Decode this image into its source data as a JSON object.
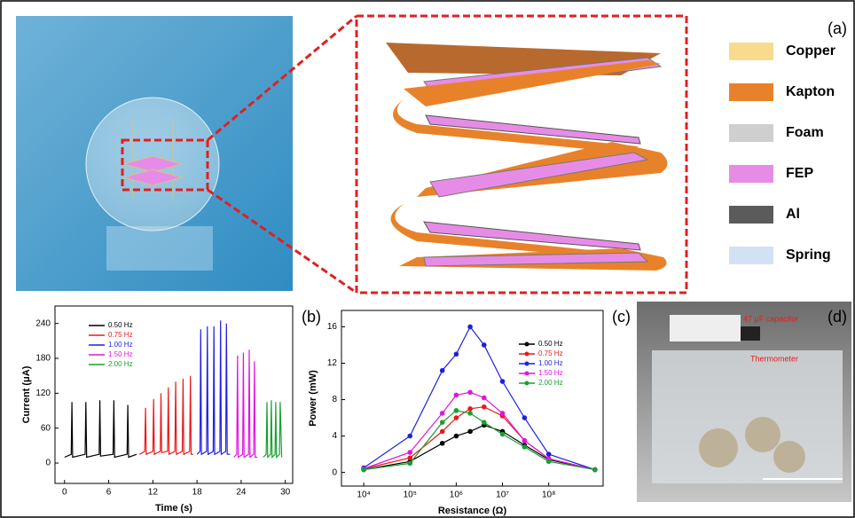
{
  "panel_labels": {
    "a": "(a)",
    "b": "(b)",
    "c": "(c)",
    "d": "(d)"
  },
  "materials": [
    {
      "label": "Copper",
      "color": "#f7db8f"
    },
    {
      "label": "Kapton",
      "color": "#e8822a"
    },
    {
      "label": "Foam",
      "color": "#cfcfcf"
    },
    {
      "label": "FEP",
      "color": "#e68ce6"
    },
    {
      "label": "Al",
      "color": "#5b5b5b"
    },
    {
      "label": "Spring",
      "color": "#d3e2f2"
    }
  ],
  "photo_annotations": {
    "capacitor": "47 μF capacitor",
    "thermometer": "Thermometer"
  },
  "chart_data": [
    {
      "type": "line",
      "xlabel": "Time (s)",
      "ylabel": "Current (μA)",
      "xlim": [
        -1.3,
        31
      ],
      "ylim": [
        -35,
        270
      ],
      "xticks": [
        0,
        6,
        12,
        18,
        24,
        30
      ],
      "yticks": [
        0,
        60,
        120,
        180,
        240
      ],
      "legend": "upper left",
      "series": [
        {
          "name": "0.50 Hz",
          "color": "#000000",
          "x": [
            0,
            0.9,
            1,
            1.1,
            2.8,
            2.9,
            3,
            4.7,
            4.8,
            4.9,
            6.6,
            6.7,
            6.8,
            8.5,
            8.6,
            8.7,
            9.8
          ],
          "values": [
            10,
            15,
            105,
            10,
            15,
            105,
            10,
            15,
            108,
            12,
            15,
            108,
            10,
            15,
            100,
            10,
            15
          ]
        },
        {
          "name": "0.75 Hz",
          "color": "#e8191b",
          "x": [
            10.2,
            10.9,
            11,
            11.1,
            12,
            12.1,
            12.2,
            13,
            13.1,
            13.2,
            14,
            14.1,
            14.2,
            15,
            15.1,
            15.2,
            16,
            16.1,
            16.2,
            17,
            17.1,
            17.2,
            17.5
          ],
          "values": [
            15,
            20,
            95,
            15,
            20,
            110,
            15,
            20,
            120,
            18,
            20,
            130,
            15,
            20,
            140,
            15,
            20,
            145,
            15,
            20,
            150,
            15,
            15
          ]
        },
        {
          "name": "1.00 Hz",
          "color": "#1f1fe0",
          "x": [
            18,
            18.4,
            18.5,
            18.6,
            19.3,
            19.4,
            19.5,
            20.2,
            20.3,
            20.4,
            21.1,
            21.2,
            21.3,
            21.9,
            22,
            22.1,
            22.5
          ],
          "values": [
            15,
            20,
            230,
            15,
            20,
            235,
            15,
            20,
            235,
            15,
            20,
            245,
            15,
            20,
            240,
            15,
            15
          ]
        },
        {
          "name": "1.50 Hz",
          "color": "#e014e0",
          "x": [
            23,
            23.4,
            23.5,
            23.6,
            24.2,
            24.3,
            24.4,
            25,
            25.1,
            25.2,
            25.7,
            25.8,
            25.9,
            26.2
          ],
          "values": [
            10,
            15,
            185,
            10,
            15,
            190,
            10,
            15,
            195,
            10,
            15,
            175,
            10,
            10
          ]
        },
        {
          "name": "2.00 Hz",
          "color": "#18a030",
          "x": [
            27,
            27.4,
            27.5,
            27.6,
            28,
            28.1,
            28.2,
            28.6,
            28.7,
            28.8,
            29.2,
            29.3,
            29.5
          ],
          "values": [
            10,
            15,
            105,
            10,
            15,
            108,
            10,
            15,
            105,
            10,
            15,
            105,
            10
          ]
        }
      ]
    },
    {
      "type": "line",
      "xlabel": "Resistance (Ω)",
      "ylabel": "Power (mW)",
      "xscale": "log",
      "markers": true,
      "xlim": [
        3300,
        1500000000
      ],
      "ylim": [
        -1.5,
        17.8
      ],
      "xticks": [
        {
          "value": 10000,
          "label": "10⁴"
        },
        {
          "value": 100000,
          "label": "10⁵"
        },
        {
          "value": 1000000,
          "label": "10⁶"
        },
        {
          "value": 10000000,
          "label": "10⁷"
        },
        {
          "value": 100000000,
          "label": "10⁸"
        }
      ],
      "yticks": [
        0,
        4,
        8,
        12,
        16
      ],
      "legend": "center right",
      "x": [
        10000,
        100000,
        500000,
        1000000,
        2000000,
        4000000,
        10000000,
        30000000,
        100000000,
        1000000000
      ],
      "series": [
        {
          "name": "0.50 Hz",
          "color": "#000000",
          "values": [
            0.3,
            1.2,
            3.2,
            4,
            4.5,
            5.2,
            4.5,
            3,
            1.4,
            0.3
          ]
        },
        {
          "name": "0.75 Hz",
          "color": "#e8191b",
          "values": [
            0.4,
            1.6,
            4.5,
            6,
            7,
            7.2,
            6.2,
            3.5,
            1.5,
            0.3
          ]
        },
        {
          "name": "1.00 Hz",
          "color": "#1f1fe0",
          "values": [
            0.5,
            4,
            11.2,
            13,
            16,
            14,
            10,
            6,
            2,
            0.3
          ]
        },
        {
          "name": "1.50 Hz",
          "color": "#e014e0",
          "values": [
            0.4,
            2.2,
            6.5,
            8.5,
            8.8,
            8.2,
            6.5,
            3.5,
            1.5,
            0.3
          ]
        },
        {
          "name": "2.00 Hz",
          "color": "#18a030",
          "values": [
            0.3,
            1,
            5.5,
            6.8,
            6.5,
            5.5,
            4.2,
            2.8,
            1.2,
            0.3
          ]
        }
      ]
    }
  ]
}
